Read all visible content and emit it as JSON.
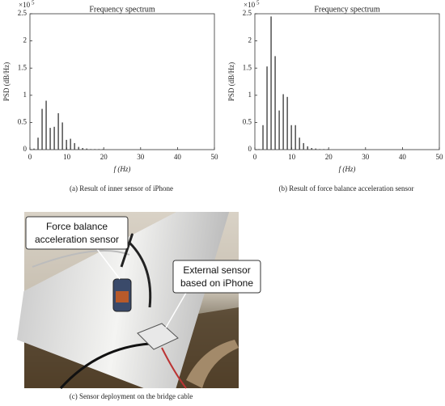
{
  "chart_data": [
    {
      "type": "bar",
      "title": "Frequency spectrum",
      "xlabel": "f (Hz)",
      "ylabel": "PSD (dB/Hz)",
      "y_multiplier": {
        "base": "×10",
        "exponent": "5"
      },
      "x": [
        1.1,
        2.2,
        3.3,
        4.4,
        5.5,
        6.6,
        7.7,
        8.8,
        9.9,
        11,
        12.1,
        13.2,
        14.3,
        15.4,
        16.5,
        17.6,
        18.7,
        19.8
      ],
      "values": [
        0.02,
        0.22,
        0.75,
        0.9,
        0.4,
        0.42,
        0.67,
        0.5,
        0.18,
        0.2,
        0.12,
        0.05,
        0.03,
        0.02,
        0.01,
        0.01,
        0.01,
        0.01
      ],
      "color": "#444444",
      "xlim": [
        0,
        50
      ],
      "ylim": [
        0,
        2.5
      ],
      "xticks": [
        0,
        10,
        20,
        30,
        40,
        50
      ],
      "yticks": [
        0,
        0.5,
        1,
        1.5,
        2,
        2.5
      ]
    },
    {
      "type": "bar",
      "title": "Frequency spectrum",
      "xlabel": "f (Hz)",
      "ylabel": "PSD (dB/Hz)",
      "y_multiplier": {
        "base": "×10",
        "exponent": "5"
      },
      "x": [
        1.1,
        2.2,
        3.3,
        4.4,
        5.5,
        6.6,
        7.7,
        8.8,
        9.9,
        11,
        12.1,
        13.2,
        14.3,
        15.4,
        16.5,
        17.6,
        18.7,
        19.8
      ],
      "values": [
        0.01,
        0.45,
        1.53,
        2.45,
        1.72,
        0.72,
        1.02,
        0.97,
        0.45,
        0.45,
        0.22,
        0.12,
        0.06,
        0.03,
        0.02,
        0.01,
        0.01,
        0.01
      ],
      "color": "#444444",
      "xlim": [
        0,
        50
      ],
      "ylim": [
        0,
        2.5
      ],
      "xticks": [
        0,
        10,
        20,
        30,
        40,
        50
      ],
      "yticks": [
        0,
        0.5,
        1,
        1.5,
        2,
        2.5
      ]
    }
  ],
  "captions": [
    "(a)  Result of inner sensor of iPhone",
    "(b)  Result of force balance acceleration sensor",
    "(c) Sensor deployment on the bridge cable"
  ],
  "photo_labels": [
    [
      "Force balance",
      "acceleration sensor"
    ],
    [
      "External sensor",
      "based on iPhone"
    ]
  ]
}
